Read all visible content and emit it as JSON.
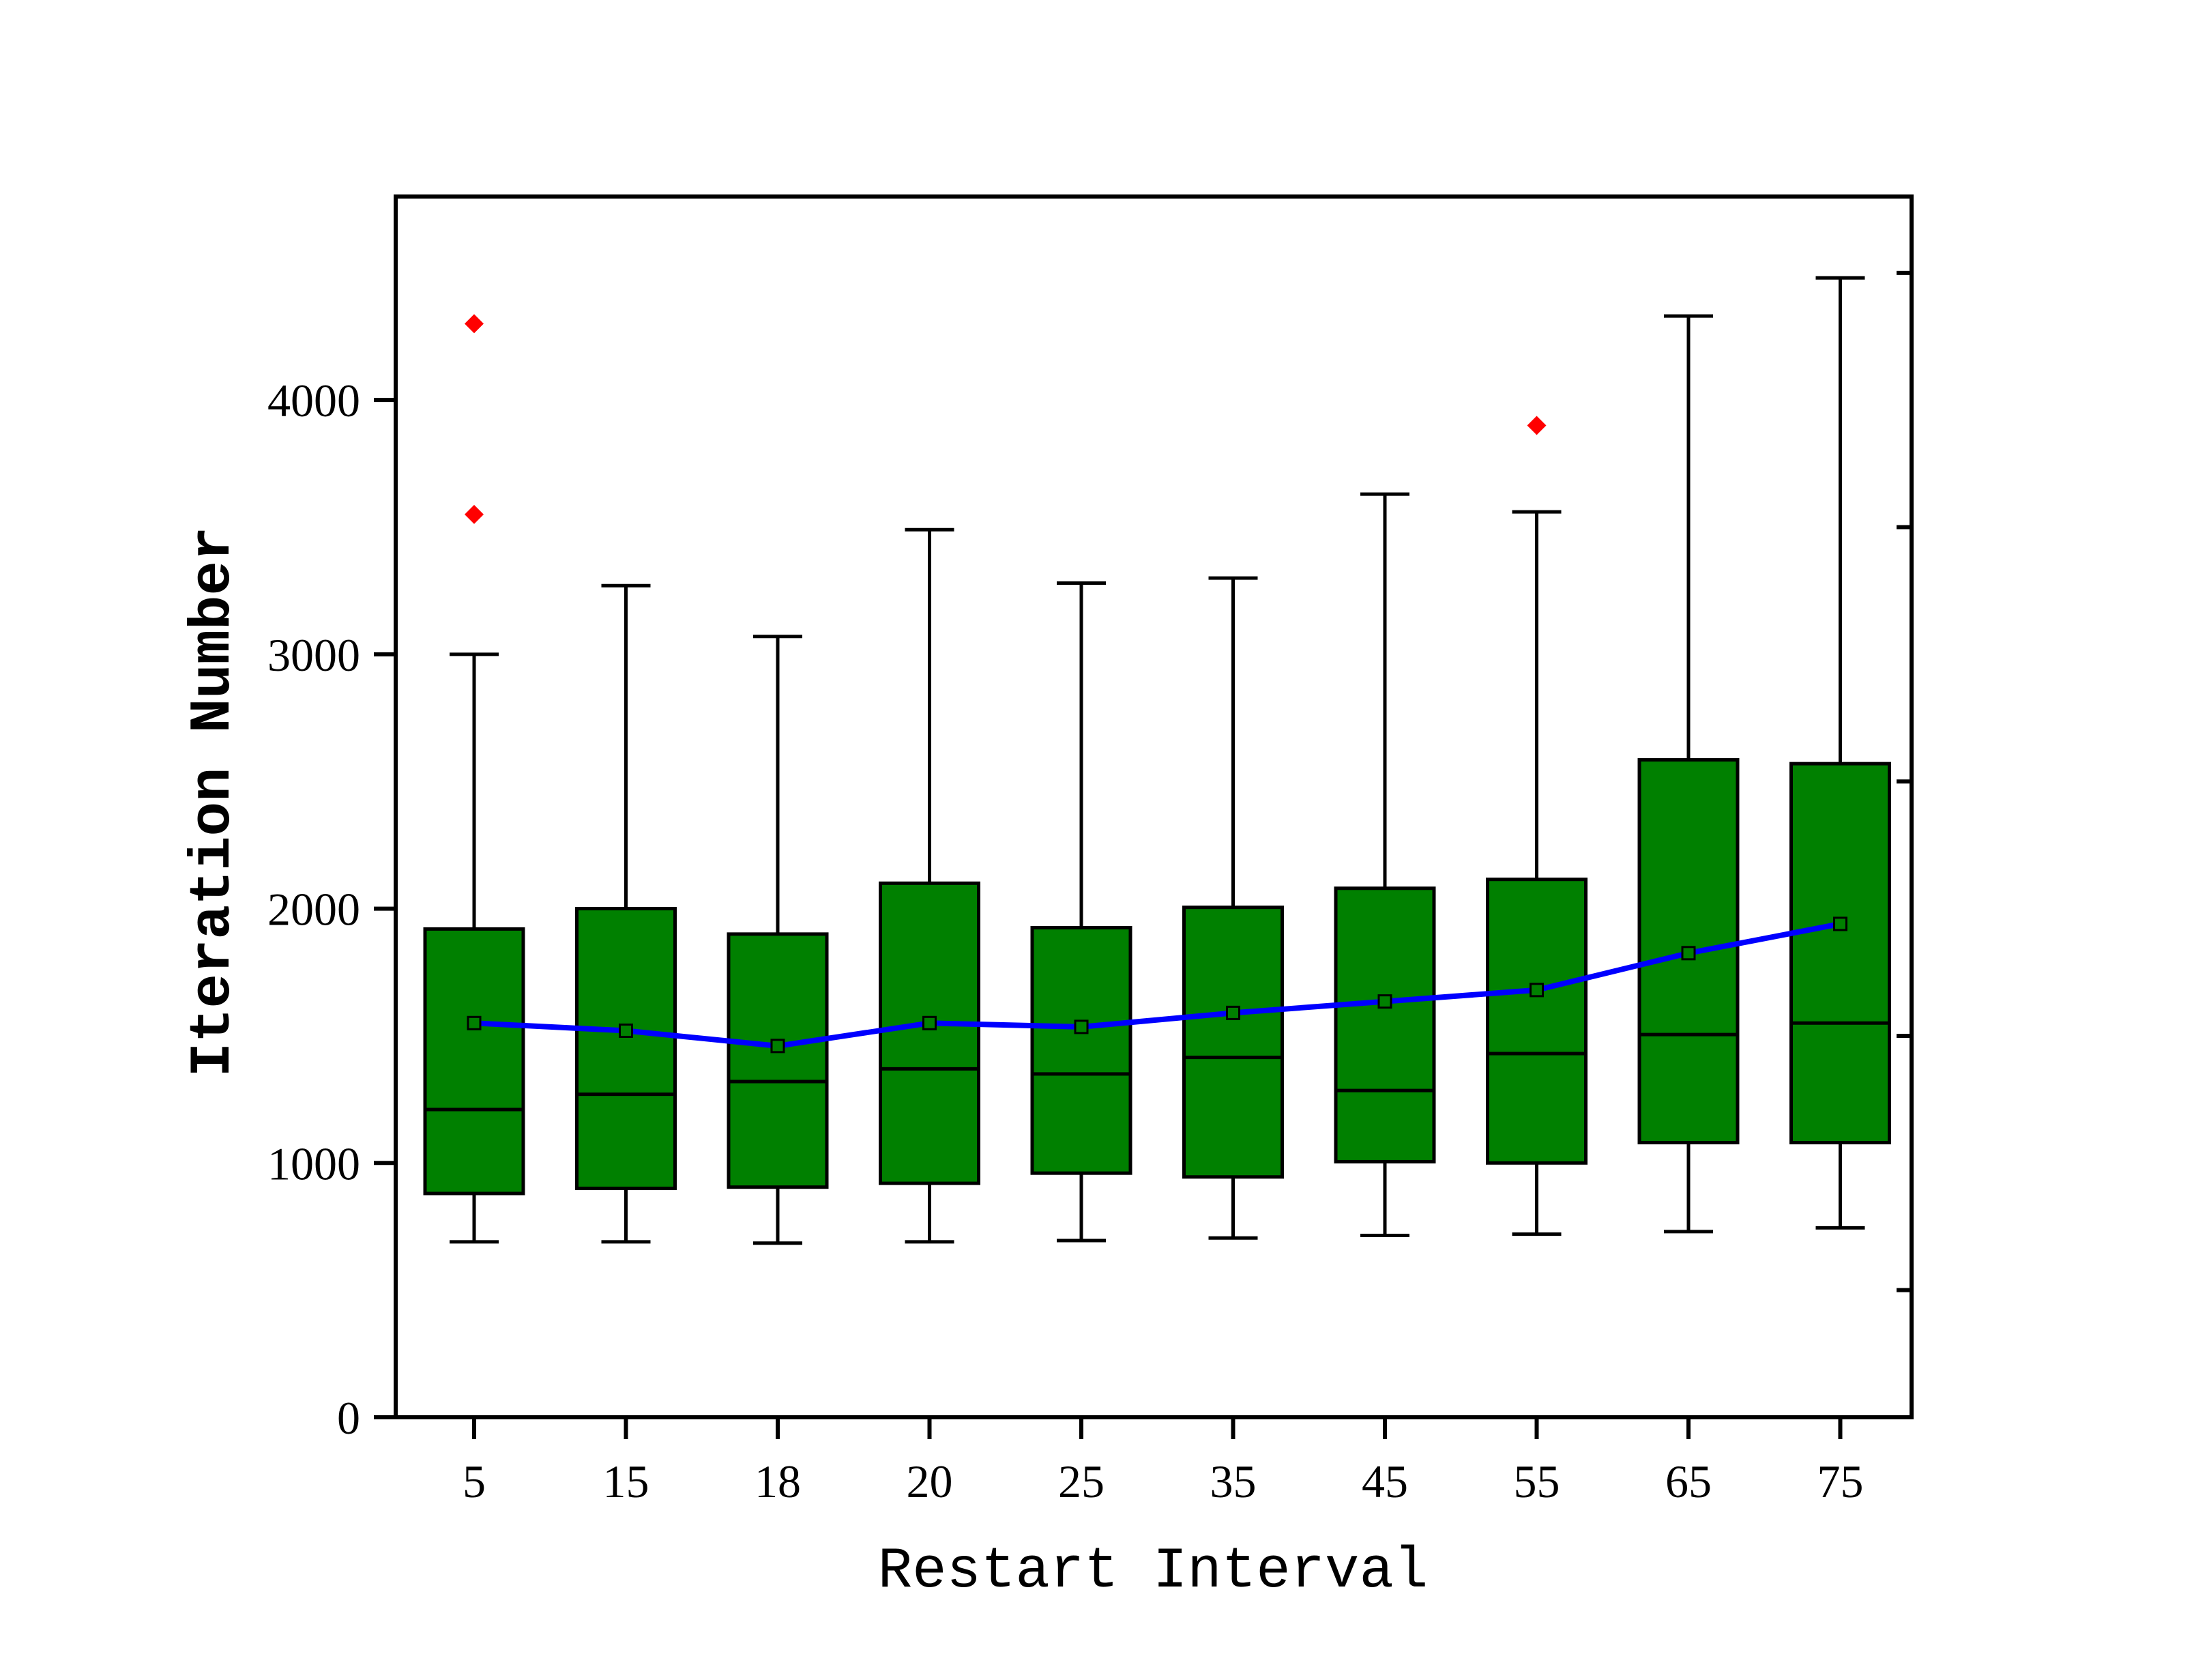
{
  "chart_data": {
    "type": "box",
    "xlabel": "Restart Interval",
    "ylabel": "Iteration Number",
    "ylim": [
      0,
      4800
    ],
    "yticks": [
      0,
      1000,
      2000,
      3000,
      4000
    ],
    "categories": [
      "5",
      "15",
      "18",
      "20",
      "25",
      "35",
      "45",
      "55",
      "65",
      "75"
    ],
    "boxes": [
      {
        "whisker_low": 690,
        "q1": 880,
        "median": 1210,
        "q3": 1920,
        "whisker_high": 3000,
        "mean": 1550,
        "outliers": [
          3550,
          4300
        ]
      },
      {
        "whisker_low": 690,
        "q1": 900,
        "median": 1270,
        "q3": 2000,
        "whisker_high": 3270,
        "mean": 1520,
        "outliers": []
      },
      {
        "whisker_low": 685,
        "q1": 905,
        "median": 1320,
        "q3": 1900,
        "whisker_high": 3070,
        "mean": 1460,
        "outliers": []
      },
      {
        "whisker_low": 690,
        "q1": 920,
        "median": 1370,
        "q3": 2100,
        "whisker_high": 3490,
        "mean": 1550,
        "outliers": []
      },
      {
        "whisker_low": 695,
        "q1": 960,
        "median": 1350,
        "q3": 1925,
        "whisker_high": 3280,
        "mean": 1535,
        "outliers": []
      },
      {
        "whisker_low": 705,
        "q1": 945,
        "median": 1415,
        "q3": 2005,
        "whisker_high": 3300,
        "mean": 1590,
        "outliers": []
      },
      {
        "whisker_low": 715,
        "q1": 1005,
        "median": 1285,
        "q3": 2080,
        "whisker_high": 3630,
        "mean": 1635,
        "outliers": []
      },
      {
        "whisker_low": 720,
        "q1": 1000,
        "median": 1430,
        "q3": 2115,
        "whisker_high": 3560,
        "mean": 1680,
        "outliers": [
          3900
        ]
      },
      {
        "whisker_low": 730,
        "q1": 1080,
        "median": 1505,
        "q3": 2585,
        "whisker_high": 4330,
        "mean": 1825,
        "outliers": []
      },
      {
        "whisker_low": 745,
        "q1": 1080,
        "median": 1550,
        "q3": 2570,
        "whisker_high": 4480,
        "mean": 1940,
        "outliers": []
      }
    ],
    "right_axis_ticks": [
      500,
      1500,
      2500,
      3500,
      4500
    ],
    "colors": {
      "box_fill": "#008000",
      "box_edge": "#000000",
      "mean_line": "#0000ff",
      "outlier": "#ff0000"
    },
    "grid": false,
    "legend": "none"
  }
}
